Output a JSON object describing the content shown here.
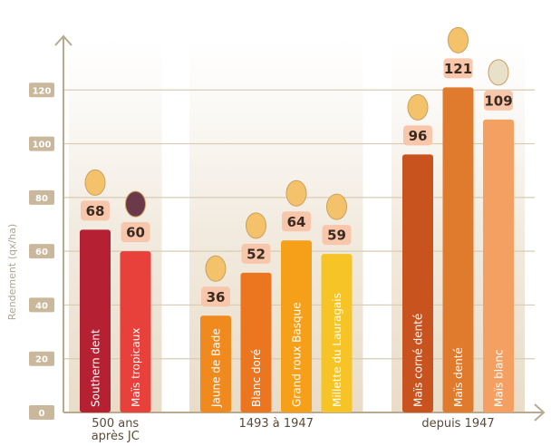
{
  "chart_data": {
    "type": "bar",
    "y_label": "Rendement (qx/ha)",
    "ylim": [
      0,
      140
    ],
    "yticks": [
      0,
      20,
      40,
      60,
      80,
      100,
      120
    ],
    "grid": true,
    "groups": [
      {
        "label": "500 ans après JC",
        "categories": [
          "Southern dent",
          "Maïs tropicaux"
        ],
        "values": [
          68,
          60
        ],
        "colors": [
          "#b52032",
          "#e8403a"
        ]
      },
      {
        "label": "1493 à 1947",
        "categories": [
          "Jaune de Bade",
          "Blanc doré",
          "Grand roux Basque",
          "Millette du Lauragais"
        ],
        "values": [
          36,
          52,
          64,
          59
        ],
        "colors": [
          "#f08a1e",
          "#ec7520",
          "#f5a018",
          "#f7c428"
        ]
      },
      {
        "label": "depuis 1947",
        "categories": [
          "Maïs corné denté",
          "Maïs denté",
          "Maïs blanc"
        ],
        "values": [
          96,
          121,
          109
        ],
        "colors": [
          "#c8531e",
          "#e07b2e",
          "#f4a062"
        ]
      }
    ]
  }
}
